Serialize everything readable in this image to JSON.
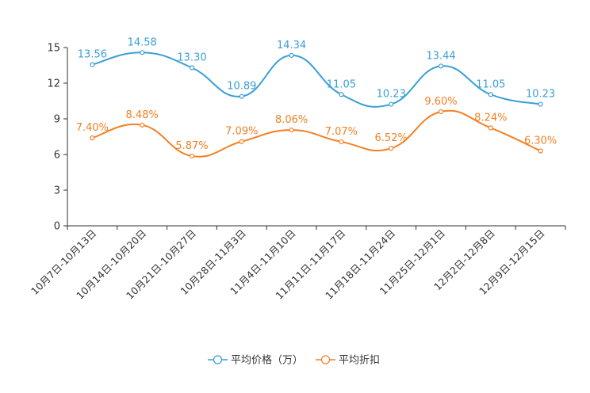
{
  "chart_data": {
    "type": "line",
    "title": "",
    "xlabel": "",
    "ylabel": "",
    "ylim": [
      0,
      15
    ],
    "yticks": [
      0,
      3,
      6,
      9,
      12,
      15
    ],
    "categories": [
      "10月7日-10月13日",
      "10月14日-10月20日",
      "10月21日-10月27日",
      "10月28日-11月3日",
      "11月4日-11月10日",
      "11月11日-11月17日",
      "11月18日-11月24日",
      "11月25日-12月1日",
      "12月2日-12月8日",
      "12月9日-12月15日"
    ],
    "series": [
      {
        "name": "平均价格（万）",
        "color": "#3a9fd6",
        "values": [
          13.56,
          14.58,
          13.3,
          10.89,
          14.34,
          11.05,
          10.23,
          13.44,
          11.05,
          10.23
        ],
        "labels": [
          "13.56",
          "14.58",
          "13.30",
          "10.89",
          "14.34",
          "11.05",
          "10.23",
          "13.44",
          "11.05",
          "10.23"
        ]
      },
      {
        "name": "平均折扣",
        "color": "#f28023",
        "values": [
          7.4,
          8.48,
          5.87,
          7.09,
          8.06,
          7.07,
          6.52,
          9.6,
          8.24,
          6.3
        ],
        "labels": [
          "7.40%",
          "8.48%",
          "5.87%",
          "7.09%",
          "8.06%",
          "7.07%",
          "6.52%",
          "9.60%",
          "8.24%",
          "6.30%"
        ]
      }
    ],
    "legend_position": "bottom-center"
  }
}
